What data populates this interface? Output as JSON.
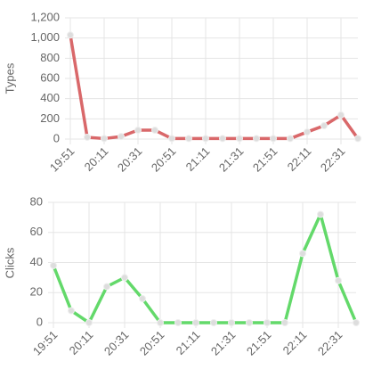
{
  "chart_data": [
    {
      "type": "line",
      "y_label": "Types",
      "color": "#d9686a",
      "categories": [
        "19:51",
        null,
        "20:11",
        null,
        "20:31",
        null,
        "20:51",
        null,
        "21:11",
        null,
        "21:31",
        null,
        "21:51",
        null,
        "22:11",
        null,
        "22:31",
        null
      ],
      "values": [
        1030,
        18,
        5,
        25,
        88,
        88,
        5,
        5,
        5,
        5,
        5,
        5,
        5,
        5,
        70,
        132,
        238,
        5
      ],
      "ylim": [
        0,
        1200
      ],
      "yticks": [
        0,
        200,
        400,
        600,
        800,
        {
          "value": 1000,
          "label": "1,000"
        },
        {
          "value": 1200,
          "label": "1,200"
        }
      ],
      "grid": true
    },
    {
      "type": "line",
      "y_label": "Clicks",
      "color": "#63d96a",
      "categories": [
        "19:51",
        null,
        "20:11",
        null,
        "20:31",
        null,
        "20:51",
        null,
        "21:11",
        null,
        "21:31",
        null,
        "21:51",
        null,
        "22:11",
        null,
        "22:31",
        null
      ],
      "values": [
        38,
        8,
        0,
        24,
        30,
        16,
        0,
        0,
        0,
        0,
        0,
        0,
        0,
        0,
        46,
        72,
        28,
        0
      ],
      "ylim": [
        0,
        80
      ],
      "yticks": [
        0,
        20,
        40,
        60,
        80
      ],
      "grid": true
    }
  ]
}
